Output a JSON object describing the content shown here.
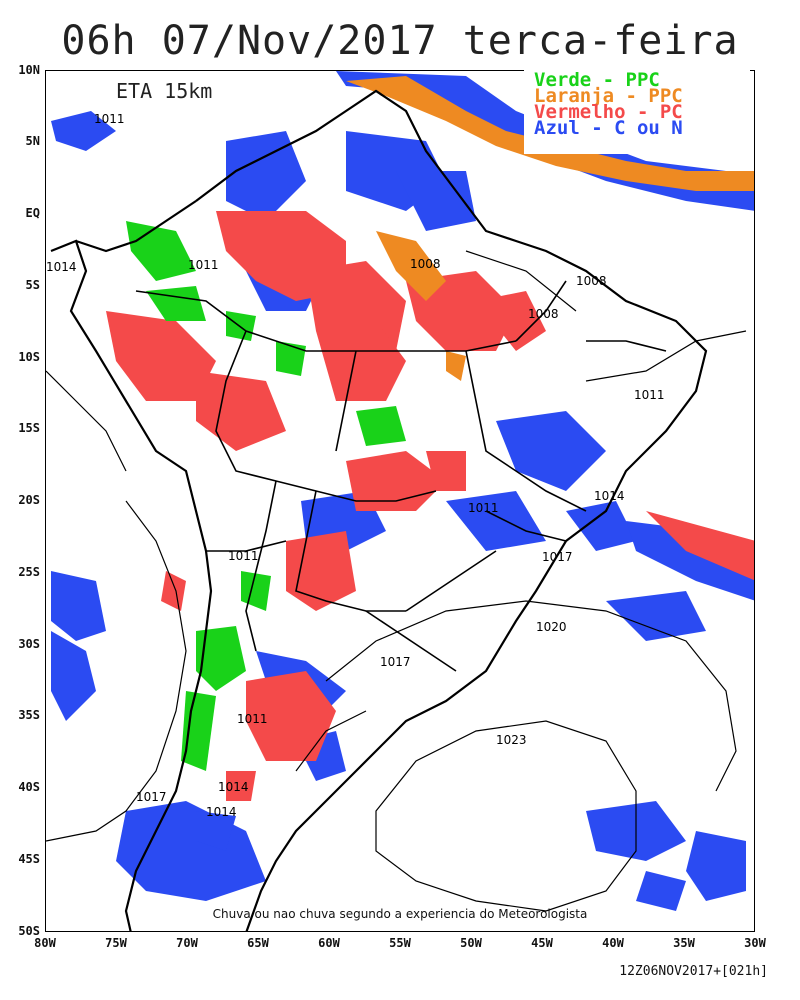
{
  "title": "06h 07/Nov/2017 terca-feira",
  "model": "ETA 15km",
  "legend": {
    "items": [
      {
        "label": "Verde - PPC",
        "color": "#19d219"
      },
      {
        "label": "Laranja - PPC",
        "color": "#ee8a22"
      },
      {
        "label": "Vermelho - PC",
        "color": "#f44a4a"
      },
      {
        "label": "Azul - C ou N",
        "color": "#2b4bf2"
      }
    ]
  },
  "caption": "Chuva ou nao chuva segundo a experiencia do Meteorologista",
  "run_label": "12Z06NOV2017+[021h]",
  "axes": {
    "lat_labels": [
      "10N",
      "5N",
      "EQ",
      "5S",
      "10S",
      "15S",
      "20S",
      "25S",
      "30S",
      "35S",
      "40S",
      "45S",
      "50S"
    ],
    "lon_labels": [
      "80W",
      "75W",
      "70W",
      "65W",
      "60W",
      "55W",
      "50W",
      "45W",
      "40W",
      "35W",
      "30W"
    ]
  },
  "isobar_labels": [
    "1011",
    "1014",
    "1011",
    "1008",
    "1008",
    "1008",
    "1011",
    "1014",
    "1011",
    "1017",
    "1011",
    "1020",
    "1017",
    "1011",
    "1023",
    "1017",
    "1014",
    "1014"
  ]
}
